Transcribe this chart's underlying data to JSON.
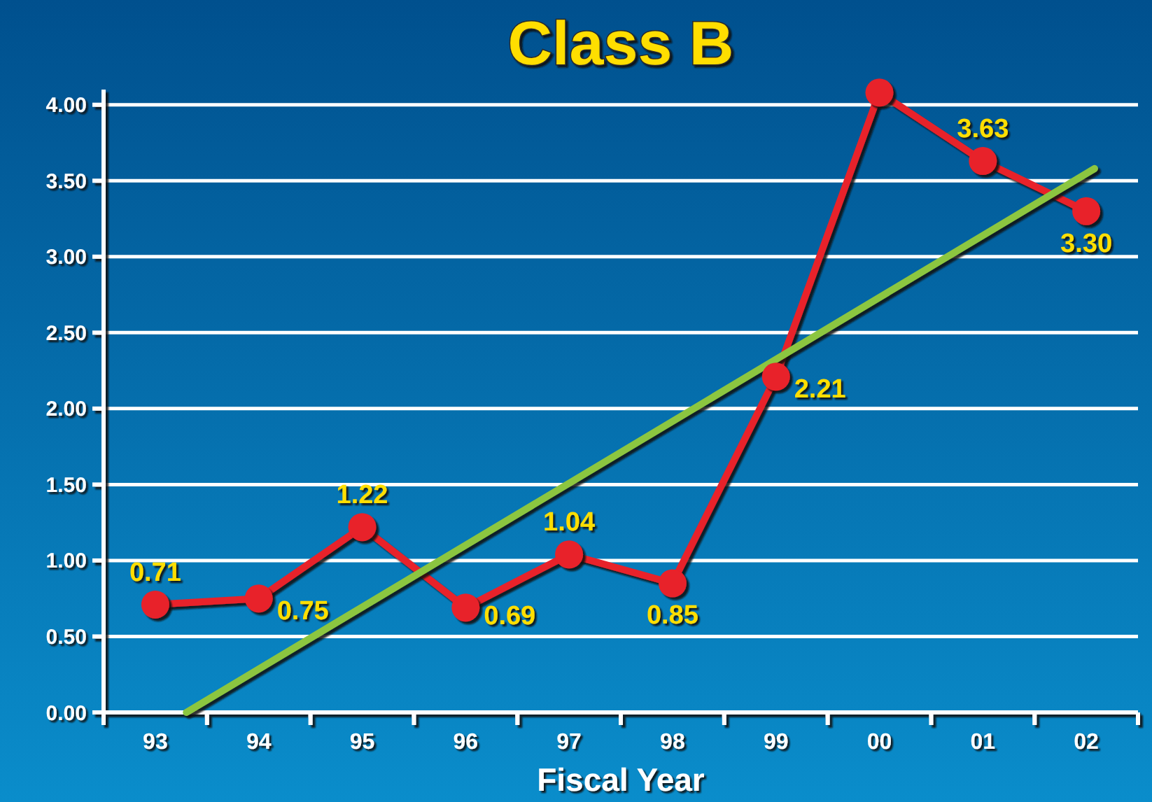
{
  "chart_data": {
    "type": "line",
    "title": "Class B",
    "xlabel": "Fiscal Year",
    "x": [
      1993,
      1994,
      1995,
      1996,
      1997,
      1998,
      1999,
      2000,
      2001,
      2002
    ],
    "xlim": [
      1992.5,
      2002.5
    ],
    "xticks": [
      {
        "value": 1992.5,
        "label": null
      },
      {
        "value": 1993,
        "label": "93"
      },
      {
        "value": 1993.5,
        "label": null
      },
      {
        "value": 1994,
        "label": "94"
      },
      {
        "value": 1994.5,
        "label": null
      },
      {
        "value": 1995,
        "label": "95"
      },
      {
        "value": 1995.5,
        "label": null
      },
      {
        "value": 1996,
        "label": "96"
      },
      {
        "value": 1996.5,
        "label": null
      },
      {
        "value": 1997,
        "label": "97"
      },
      {
        "value": 1997.5,
        "label": null
      },
      {
        "value": 1998,
        "label": "98"
      },
      {
        "value": 1998.5,
        "label": null
      },
      {
        "value": 1999,
        "label": "99"
      },
      {
        "value": 1999.5,
        "label": null
      },
      {
        "value": 2000,
        "label": "00"
      },
      {
        "value": 2000.5,
        "label": null
      },
      {
        "value": 2001,
        "label": "01"
      },
      {
        "value": 2001.5,
        "label": null
      },
      {
        "value": 2002,
        "label": "02"
      },
      {
        "value": 2002.5,
        "label": null
      }
    ],
    "ylim": [
      0,
      4.1
    ],
    "yticks": [
      {
        "value": 0,
        "label": "0.00"
      },
      {
        "value": 0.5,
        "label": "0.50"
      },
      {
        "value": 1,
        "label": "1.00"
      },
      {
        "value": 1.5,
        "label": "1.50"
      },
      {
        "value": 2,
        "label": "2.00"
      },
      {
        "value": 2.5,
        "label": "2.50"
      },
      {
        "value": 3,
        "label": "3.00"
      },
      {
        "value": 3.5,
        "label": "3.50"
      },
      {
        "value": 4,
        "label": "4.00"
      }
    ],
    "grid": "y",
    "marker": "circle",
    "series": [
      {
        "color": "#e8202a",
        "values": [
          0.71,
          0.75,
          1.22,
          0.69,
          1.04,
          0.85,
          2.21,
          4.08,
          3.63,
          3.3
        ],
        "value_labels": [
          "0.71",
          "0.75",
          "1.22",
          "0.69",
          "1.04",
          "0.85",
          "2.21",
          null,
          "3.63",
          "3.30"
        ]
      },
      {
        "type": "line",
        "x": [
          1993.3,
          2002.08
        ],
        "values": [
          0,
          3.58
        ],
        "color": "#8cc63f",
        "marker": "none"
      }
    ]
  }
}
